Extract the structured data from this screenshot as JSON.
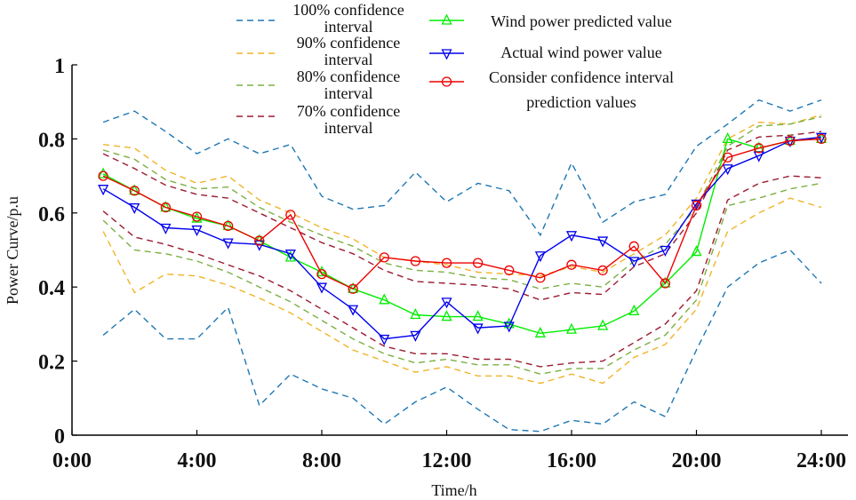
{
  "chart_data": {
    "type": "line",
    "title": "",
    "xlabel": "Time/h",
    "ylabel": "Power Curve/p.u",
    "xlim": [
      0,
      24
    ],
    "ylim": [
      0,
      1
    ],
    "x_ticks": [
      0,
      4,
      8,
      12,
      16,
      20,
      24
    ],
    "x_tick_labels": [
      "0:00",
      "4:00",
      "8:00",
      "12:00",
      "16:00",
      "20:00",
      "24:00"
    ],
    "y_ticks": [
      0,
      0.2,
      0.4,
      0.6,
      0.8,
      1
    ],
    "y_tick_labels": [
      "0",
      "0.2",
      "0.4",
      "0.6",
      "0.8",
      "1"
    ],
    "x": [
      1,
      2,
      3,
      4,
      5,
      6,
      7,
      8,
      9,
      10,
      11,
      12,
      13,
      14,
      15,
      16,
      17,
      18,
      19,
      20,
      21,
      22,
      23,
      24
    ],
    "bands": [
      {
        "name": "100% confidence interval",
        "legend": [
          "100% confidence",
          "interval"
        ],
        "color": "#1f77b4",
        "upper": [
          0.845,
          0.875,
          0.82,
          0.76,
          0.8,
          0.76,
          0.785,
          0.645,
          0.61,
          0.62,
          0.71,
          0.63,
          0.68,
          0.66,
          0.54,
          0.735,
          0.575,
          0.63,
          0.65,
          0.78,
          0.84,
          0.905,
          0.875,
          0.905
        ],
        "lower": [
          0.27,
          0.34,
          0.26,
          0.26,
          0.345,
          0.08,
          0.165,
          0.125,
          0.1,
          0.03,
          0.09,
          0.13,
          0.07,
          0.015,
          0.01,
          0.04,
          0.03,
          0.09,
          0.05,
          0.23,
          0.4,
          0.465,
          0.5,
          0.41
        ]
      },
      {
        "name": "90% confidence interval",
        "legend": [
          "90% confidence",
          "interval"
        ],
        "color": "#f0b429",
        "upper": [
          0.785,
          0.775,
          0.715,
          0.68,
          0.7,
          0.635,
          0.6,
          0.56,
          0.53,
          0.48,
          0.47,
          0.46,
          0.44,
          0.435,
          0.43,
          0.455,
          0.44,
          0.49,
          0.54,
          0.64,
          0.8,
          0.845,
          0.84,
          0.865
        ],
        "lower": [
          0.55,
          0.385,
          0.435,
          0.43,
          0.405,
          0.37,
          0.33,
          0.28,
          0.23,
          0.2,
          0.17,
          0.185,
          0.16,
          0.16,
          0.14,
          0.165,
          0.14,
          0.21,
          0.245,
          0.34,
          0.55,
          0.6,
          0.64,
          0.615
        ]
      },
      {
        "name": "80% confidence interval",
        "legend": [
          "80% confidence",
          "interval"
        ],
        "color": "#7bb043",
        "upper": [
          0.77,
          0.745,
          0.69,
          0.665,
          0.67,
          0.615,
          0.575,
          0.54,
          0.51,
          0.465,
          0.445,
          0.44,
          0.425,
          0.42,
          0.395,
          0.41,
          0.4,
          0.47,
          0.515,
          0.615,
          0.78,
          0.835,
          0.84,
          0.86
        ],
        "lower": [
          0.58,
          0.5,
          0.49,
          0.47,
          0.44,
          0.4,
          0.36,
          0.31,
          0.26,
          0.22,
          0.195,
          0.205,
          0.19,
          0.19,
          0.165,
          0.18,
          0.18,
          0.23,
          0.27,
          0.365,
          0.62,
          0.64,
          0.665,
          0.68
        ]
      },
      {
        "name": "70% confidence interval",
        "legend": [
          "70% confidence",
          "interval"
        ],
        "color": "#9b1b30",
        "upper": [
          0.76,
          0.72,
          0.675,
          0.65,
          0.64,
          0.6,
          0.56,
          0.52,
          0.49,
          0.445,
          0.415,
          0.41,
          0.405,
          0.395,
          0.365,
          0.385,
          0.38,
          0.455,
          0.49,
          0.6,
          0.77,
          0.805,
          0.81,
          0.82
        ],
        "lower": [
          0.605,
          0.535,
          0.515,
          0.49,
          0.46,
          0.43,
          0.39,
          0.34,
          0.29,
          0.24,
          0.22,
          0.22,
          0.205,
          0.205,
          0.185,
          0.195,
          0.2,
          0.25,
          0.3,
          0.39,
          0.635,
          0.68,
          0.7,
          0.695
        ]
      }
    ],
    "series": [
      {
        "name": "Wind power predicted value",
        "color": "#00ee00",
        "marker": "triangle-up",
        "values": [
          0.705,
          0.66,
          0.615,
          0.585,
          0.565,
          0.525,
          0.48,
          0.44,
          0.395,
          0.365,
          0.325,
          0.32,
          0.32,
          0.3,
          0.275,
          0.285,
          0.295,
          0.335,
          0.41,
          0.495,
          0.8,
          0.775,
          0.795,
          0.8
        ]
      },
      {
        "name": "Actual wind power value",
        "color": "#0000ee",
        "marker": "triangle-down",
        "values": [
          0.665,
          0.615,
          0.56,
          0.555,
          0.52,
          0.515,
          0.49,
          0.4,
          0.34,
          0.26,
          0.27,
          0.36,
          0.29,
          0.295,
          0.485,
          0.54,
          0.525,
          0.47,
          0.5,
          0.625,
          0.72,
          0.755,
          0.795,
          0.805
        ]
      },
      {
        "name": "Consider confidence interval prediction values",
        "color": "#ee0000",
        "marker": "circle",
        "values": [
          0.7,
          0.66,
          0.615,
          0.59,
          0.565,
          0.525,
          0.595,
          0.435,
          0.395,
          0.48,
          0.47,
          0.465,
          0.465,
          0.445,
          0.425,
          0.46,
          0.445,
          0.51,
          0.41,
          0.62,
          0.75,
          0.775,
          0.795,
          0.8
        ]
      }
    ],
    "legend_series": [
      {
        "lines": [
          "Wind power predicted value"
        ]
      },
      {
        "lines": [
          "Actual wind power value"
        ]
      },
      {
        "lines": [
          "Consider confidence interval",
          "prediction values"
        ]
      }
    ],
    "legend_position": "top",
    "grid": false
  }
}
